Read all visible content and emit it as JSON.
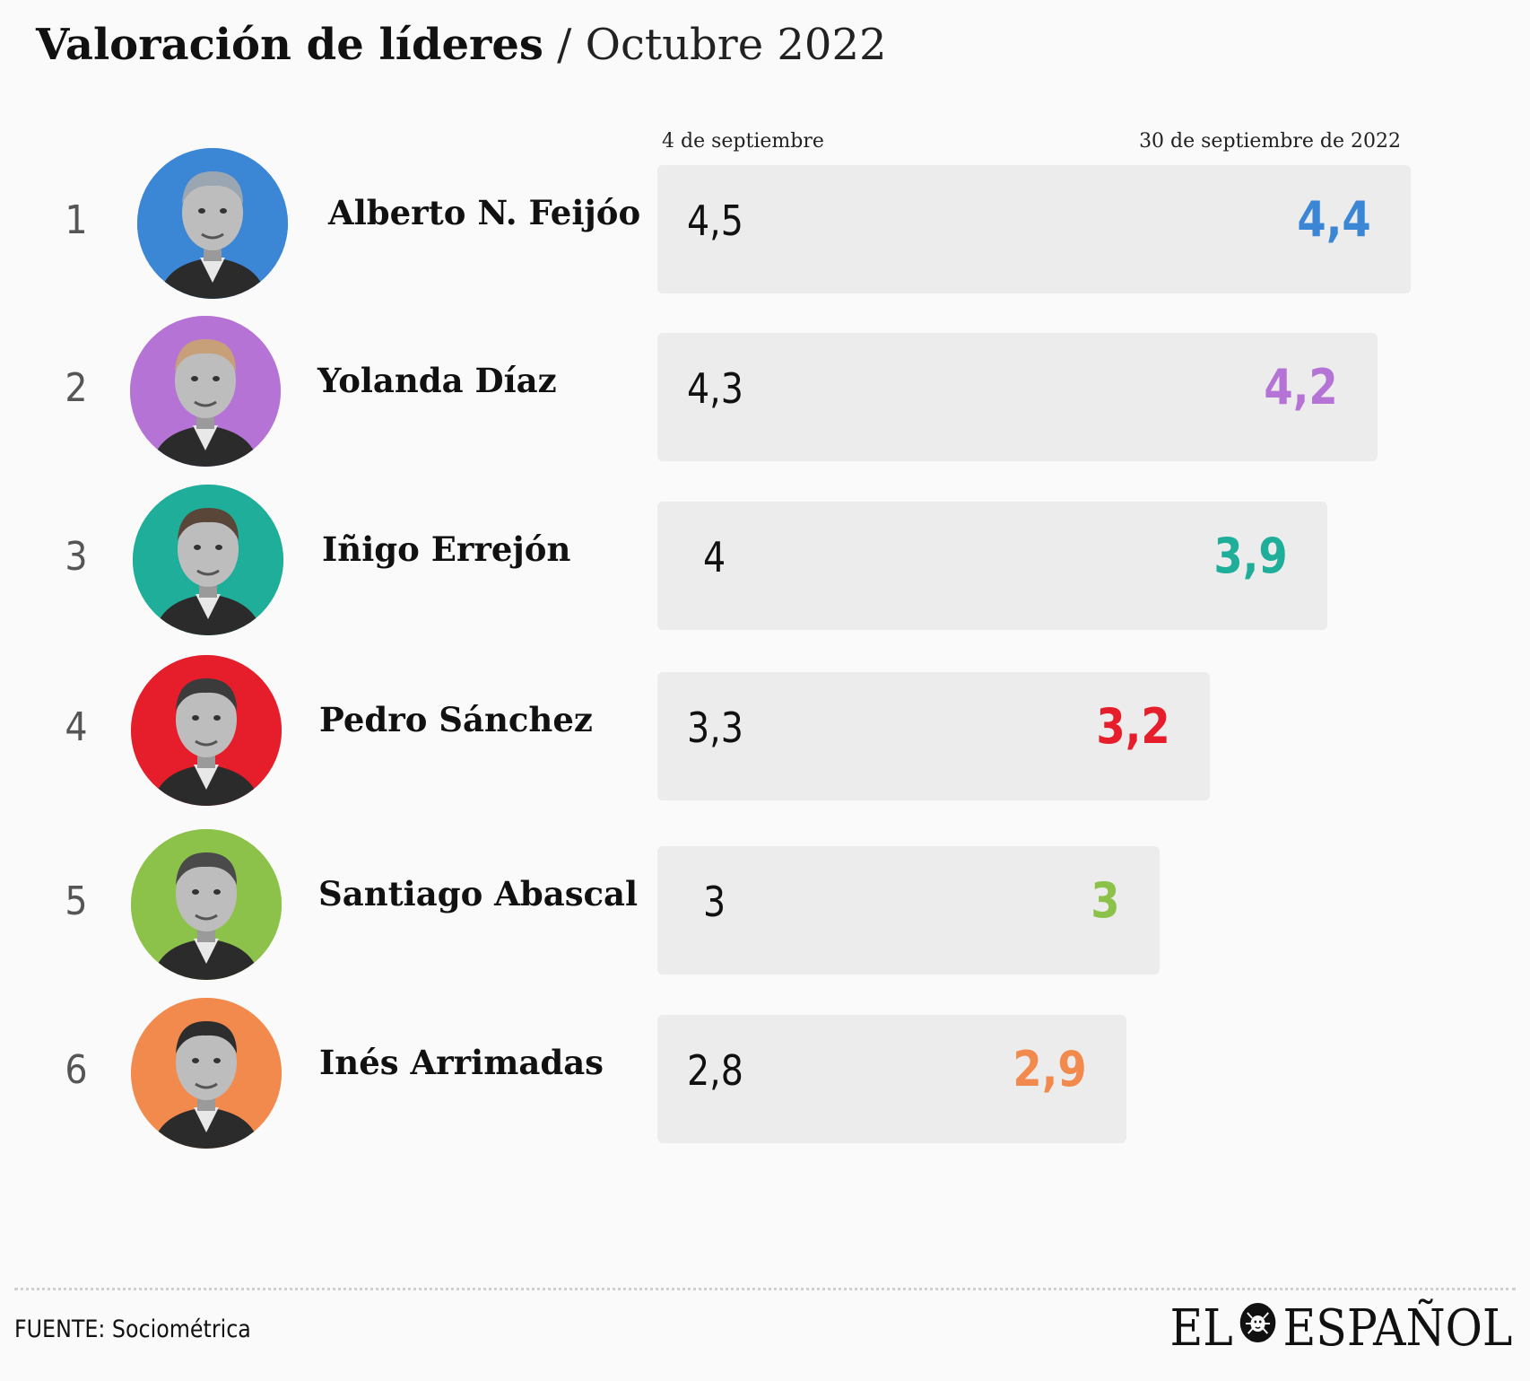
{
  "title": {
    "bold": "Valoración de líderes",
    "light": "/ Octubre 2022"
  },
  "columns": {
    "before": "4 de septiembre",
    "after": "30 de septiembre de 2022"
  },
  "chart_data": {
    "type": "bar",
    "title": "Valoración de líderes / Octubre 2022",
    "categories": [
      "Alberto N. Feijóo",
      "Yolanda Díaz",
      "Iñigo Errejón",
      "Pedro Sánchez",
      "Santiago Abascal",
      "Inés Arrimadas"
    ],
    "series": [
      {
        "name": "4 de septiembre",
        "values": [
          4.5,
          4.3,
          4,
          3.3,
          3,
          2.8
        ],
        "labels": [
          "4,5",
          "4,3",
          "4",
          "3,3",
          "3",
          "2,8"
        ]
      },
      {
        "name": "30 de septiembre de 2022",
        "values": [
          4.4,
          4.2,
          3.9,
          3.2,
          3,
          2.9
        ],
        "labels": [
          "4,4",
          "4,2",
          "3,9",
          "3,2",
          "3",
          "2,9"
        ]
      }
    ],
    "colors": [
      "#3c86d6",
      "#b673d6",
      "#1fae99",
      "#e61e2b",
      "#8dc24a",
      "#f28a4e"
    ],
    "ranks": [
      "1",
      "2",
      "3",
      "4",
      "5",
      "6"
    ]
  },
  "leaders": [
    {
      "rank": "1",
      "name": "Alberto N. Feijóo",
      "before": "4,5",
      "after": "4,4",
      "color": "#3c86d6",
      "photo": "feijoo-photo"
    },
    {
      "rank": "2",
      "name": "Yolanda Díaz",
      "before": "4,3",
      "after": "4,2",
      "color": "#b673d6",
      "photo": "diaz-photo"
    },
    {
      "rank": "3",
      "name": "Iñigo Errejón",
      "before": "4",
      "after": "3,9",
      "color": "#1fae99",
      "photo": "errejon-photo"
    },
    {
      "rank": "4",
      "name": "Pedro Sánchez",
      "before": "3,3",
      "after": "3,2",
      "color": "#e61e2b",
      "photo": "sanchez-photo"
    },
    {
      "rank": "5",
      "name": "Santiago Abascal",
      "before": "3",
      "after": "3",
      "color": "#8dc24a",
      "photo": "abascal-photo"
    },
    {
      "rank": "6",
      "name": "Inés Arrimadas",
      "before": "2,8",
      "after": "2,9",
      "color": "#f28a4e",
      "photo": "arrimadas-photo"
    }
  ],
  "footer": {
    "source": "FUENTE: Sociométrica",
    "logo_left": "EL",
    "logo_right": "ESPAÑOL",
    "logo_icon": "lion-icon"
  }
}
